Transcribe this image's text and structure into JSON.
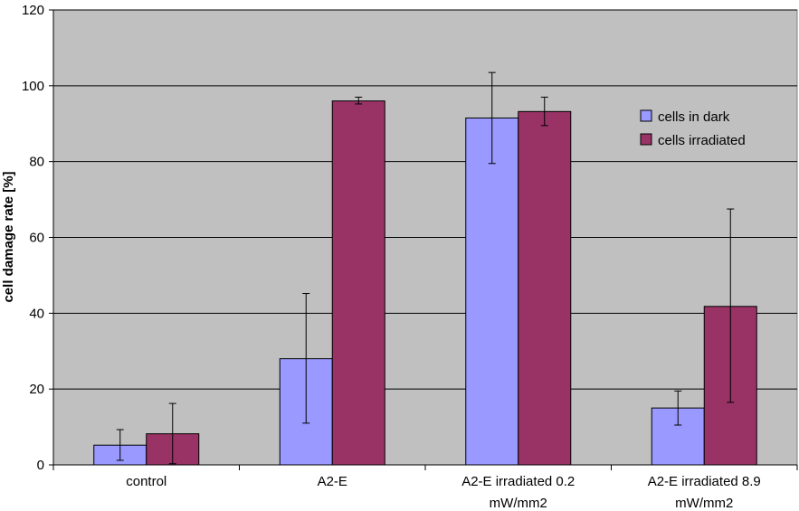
{
  "chart_data": {
    "type": "bar",
    "title": "",
    "xlabel": "",
    "ylabel": "cell damage rate [%]",
    "ylim": [
      0,
      120
    ],
    "yticks": [
      0,
      20,
      40,
      60,
      80,
      100,
      120
    ],
    "grid": true,
    "legend_position": "top-right",
    "categories": [
      [
        "control"
      ],
      [
        "A2-E"
      ],
      [
        "A2-E irradiated 0.2",
        "mW/mm2"
      ],
      [
        "A2-E irradiated 8.9",
        "mW/mm2"
      ]
    ],
    "series": [
      {
        "name": "cells in dark",
        "color": "#9999ff",
        "values": [
          5.2,
          28,
          91.5,
          15
        ],
        "error_low": [
          1.2,
          11,
          79.5,
          10.5
        ],
        "error_high": [
          9.3,
          45.2,
          103.5,
          19.5
        ]
      },
      {
        "name": "cells irradiated",
        "color": "#993366",
        "values": [
          8.2,
          96,
          93.2,
          41.8
        ],
        "error_low": [
          0.3,
          95.2,
          89.5,
          16.5
        ],
        "error_high": [
          16.2,
          97,
          97,
          67.5
        ]
      }
    ],
    "plot_background": "#c0c0c0"
  }
}
